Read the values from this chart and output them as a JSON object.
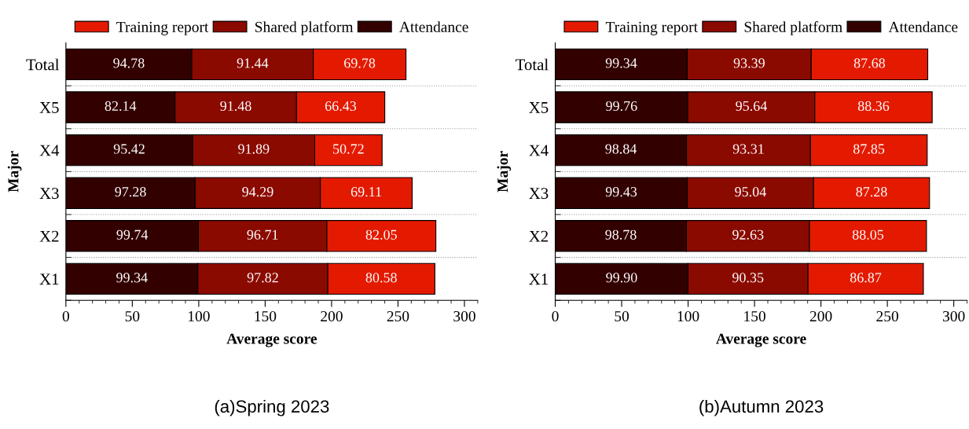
{
  "chart_data": [
    {
      "type": "bar",
      "orientation": "horizontal",
      "stacked": true,
      "title": "(a)Spring 2023",
      "xlabel": "Average score",
      "ylabel": "Major",
      "categories": [
        "Total",
        "X5",
        "X4",
        "X3",
        "X2",
        "X1"
      ],
      "series": [
        {
          "name": "Attendance",
          "color": "#330000",
          "values": [
            94.78,
            82.14,
            95.42,
            97.28,
            99.74,
            99.34
          ],
          "value_labels": [
            "94.78",
            "82.14",
            "95.42",
            "97.28",
            "99.74",
            "99.34"
          ]
        },
        {
          "name": "Shared platform",
          "color": "#8b0a00",
          "values": [
            91.44,
            91.48,
            91.89,
            94.29,
            96.71,
            97.82
          ],
          "value_labels": [
            "91.44",
            "91.48",
            "91.89",
            "94.29",
            "96.71",
            "97.82"
          ]
        },
        {
          "name": "Training report",
          "color": "#e41a00",
          "values": [
            69.78,
            66.43,
            50.72,
            69.11,
            82.05,
            80.58
          ],
          "value_labels": [
            "69.78",
            "66.43",
            "50.72",
            "69.11",
            "82.05",
            "80.58"
          ]
        }
      ],
      "xlim": [
        0,
        310
      ],
      "xticks": [
        0,
        50,
        100,
        150,
        200,
        250,
        300
      ],
      "grid": "y",
      "legend": "top"
    },
    {
      "type": "bar",
      "orientation": "horizontal",
      "stacked": true,
      "title": "(b)Autumn 2023",
      "xlabel": "Average score",
      "ylabel": "Major",
      "categories": [
        "Total",
        "X5",
        "X4",
        "X3",
        "X2",
        "X1"
      ],
      "series": [
        {
          "name": "Attendance",
          "color": "#330000",
          "values": [
            99.34,
            99.76,
            98.84,
            99.43,
            98.78,
            99.9
          ],
          "value_labels": [
            "99.34",
            "99.76",
            "98.84",
            "99.43",
            "98.78",
            "99.90"
          ]
        },
        {
          "name": "Shared platform",
          "color": "#8b0a00",
          "values": [
            93.39,
            95.64,
            93.31,
            95.04,
            92.63,
            90.35
          ],
          "value_labels": [
            "93.39",
            "95.64",
            "93.31",
            "95.04",
            "92.63",
            "90.35"
          ]
        },
        {
          "name": "Training report",
          "color": "#e41a00",
          "values": [
            87.68,
            88.36,
            87.85,
            87.28,
            88.05,
            86.87
          ],
          "value_labels": [
            "87.68",
            "88.36",
            "87.85",
            "87.28",
            "88.05",
            "86.87"
          ]
        }
      ],
      "xlim": [
        0,
        310
      ],
      "xticks": [
        0,
        50,
        100,
        150,
        200,
        250,
        300
      ],
      "grid": "y",
      "legend": "top"
    }
  ]
}
